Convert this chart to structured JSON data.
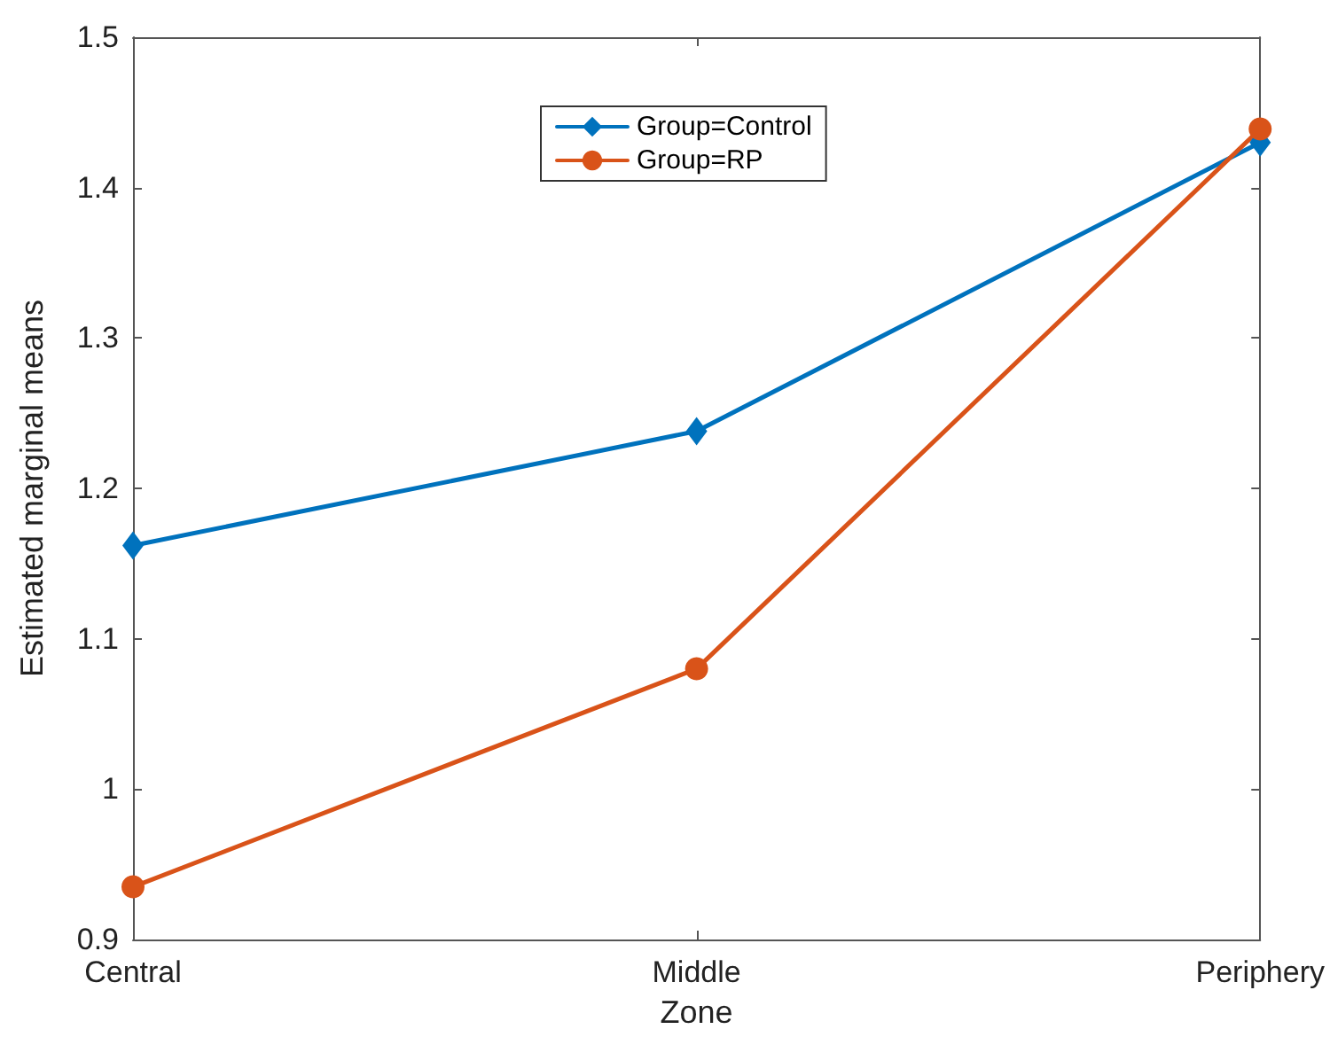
{
  "chart_data": {
    "type": "line",
    "xlabel": "Zone",
    "ylabel": "Estimated marginal means",
    "categories": [
      "Central",
      "Middle",
      "Periphery"
    ],
    "series": [
      {
        "name": "Group=Control",
        "color": "#0072bd",
        "marker": "diamond",
        "values": [
          1.162,
          1.238,
          1.43
        ]
      },
      {
        "name": "Group=RP",
        "color": "#d95319",
        "marker": "circle",
        "values": [
          0.935,
          1.08,
          1.439
        ]
      }
    ],
    "ylim": [
      0.9,
      1.5
    ],
    "yticks": [
      0.9,
      1,
      1.1,
      1.2,
      1.3,
      1.4,
      1.5
    ],
    "grid": false,
    "legend": "top",
    "line_style": "solid"
  }
}
